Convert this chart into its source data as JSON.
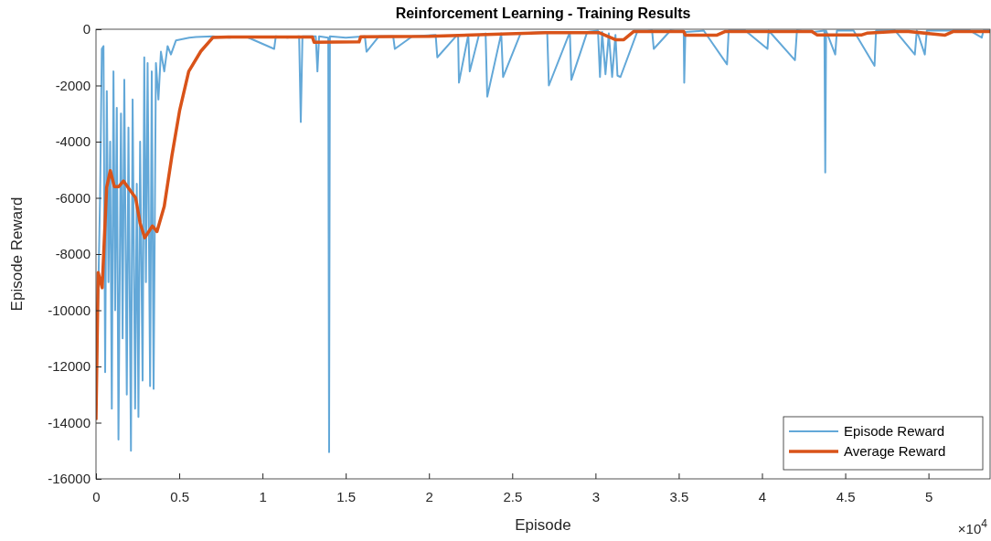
{
  "chart_data": {
    "type": "line",
    "title": "Reinforcement Learning - Training Results",
    "xlabel": "Episode",
    "ylabel": "Episode Reward",
    "annotations": [
      "×10$^{4}$"
    ],
    "xlim": [
      0,
      5.37
    ],
    "xticks": [
      0,
      0.5,
      1,
      1.5,
      2,
      2.5,
      3,
      3.5,
      4,
      4.5,
      5
    ],
    "ylim": [
      -16000,
      0
    ],
    "yticks": [
      -16000,
      -14000,
      -12000,
      -10000,
      -8000,
      -6000,
      -4000,
      -2000,
      0
    ],
    "grid": false,
    "legend": "bottom right",
    "series": [
      {
        "name": "Episode Reward",
        "color": "#63a8d8",
        "x": [
          0,
          0.01,
          0.025,
          0.035,
          0.045,
          0.055,
          0.065,
          0.075,
          0.085,
          0.095,
          0.105,
          0.115,
          0.125,
          0.135,
          0.15,
          0.16,
          0.17,
          0.185,
          0.195,
          0.21,
          0.22,
          0.235,
          0.245,
          0.255,
          0.265,
          0.28,
          0.29,
          0.3,
          0.31,
          0.325,
          0.335,
          0.346,
          0.36,
          0.375,
          0.39,
          0.41,
          0.43,
          0.45,
          0.48,
          0.52,
          0.56,
          0.6,
          0.7,
          0.8,
          0.9,
          1.07,
          1.08,
          1.15,
          1.22,
          1.23,
          1.24,
          1.32,
          1.33,
          1.34,
          1.395,
          1.4,
          1.405,
          1.5,
          1.615,
          1.625,
          1.7,
          1.785,
          1.795,
          1.9,
          2.04,
          2.05,
          2.17,
          2.175,
          2.18,
          2.236,
          2.245,
          2.3,
          2.34,
          2.35,
          2.434,
          2.445,
          2.55,
          2.71,
          2.72,
          2.846,
          2.855,
          2.95,
          3.015,
          3.027,
          3.04,
          3.06,
          3.08,
          3.1,
          3.12,
          3.132,
          3.15,
          3.25,
          3.34,
          3.35,
          3.45,
          3.53,
          3.533,
          3.54,
          3.65,
          3.79,
          3.8,
          3.9,
          4.033,
          4.04,
          4.198,
          4.21,
          4.31,
          4.375,
          4.38,
          4.385,
          4.44,
          4.45,
          4.55,
          4.676,
          4.685,
          4.8,
          4.918,
          4.93,
          4.978,
          4.99,
          5.1,
          5.25,
          5.32,
          5.33,
          5.37
        ],
        "values": [
          -13900,
          -10500,
          -5800,
          -700,
          -600,
          -12200,
          -2200,
          -9000,
          -4000,
          -13500,
          -1500,
          -10000,
          -2800,
          -14600,
          -3000,
          -11000,
          -1800,
          -13000,
          -3500,
          -15000,
          -2500,
          -13500,
          -5500,
          -13800,
          -4000,
          -12500,
          -1000,
          -9000,
          -1200,
          -12700,
          -1500,
          -12800,
          -1200,
          -2500,
          -800,
          -1500,
          -600,
          -900,
          -400,
          -350,
          -300,
          -280,
          -250,
          -300,
          -260,
          -700,
          -250,
          -300,
          -250,
          -3300,
          -250,
          -250,
          -1500,
          -250,
          -300,
          -15050,
          -250,
          -300,
          -250,
          -800,
          -250,
          -250,
          -700,
          -250,
          -200,
          -1000,
          -200,
          -250,
          -1900,
          -200,
          -1500,
          -200,
          -150,
          -2400,
          -150,
          -1700,
          -150,
          -100,
          -2000,
          -100,
          -1800,
          -100,
          -50,
          -1700,
          -100,
          -1600,
          -150,
          -1700,
          -200,
          -1650,
          -1700,
          -100,
          -50,
          -700,
          -50,
          -100,
          -1900,
          -100,
          -50,
          -1250,
          -50,
          -50,
          -700,
          -50,
          -1100,
          -50,
          -100,
          -50,
          -5100,
          -50,
          -900,
          -50,
          -50,
          -1300,
          -50,
          -50,
          -900,
          -50,
          -900,
          -50,
          -50,
          -50,
          -300,
          -50,
          -50
        ]
      },
      {
        "name": "Average Reward",
        "color": "#d95319",
        "x": [
          0,
          0.013,
          0.037,
          0.064,
          0.086,
          0.11,
          0.137,
          0.165,
          0.201,
          0.238,
          0.265,
          0.293,
          0.339,
          0.366,
          0.41,
          0.456,
          0.502,
          0.557,
          0.63,
          0.703,
          0.795,
          1,
          1.3,
          1.31,
          1.58,
          1.59,
          2,
          2.7,
          3.02,
          3.12,
          3.17,
          3.23,
          3.53,
          3.54,
          3.73,
          3.78,
          4.3,
          4.33,
          4.6,
          4.63,
          4.8,
          4.88,
          5.1,
          5.15,
          5.37
        ],
        "values": [
          -13900,
          -8660,
          -9200,
          -5630,
          -5030,
          -5600,
          -5600,
          -5400,
          -5700,
          -6000,
          -6900,
          -7420,
          -7000,
          -7200,
          -6300,
          -4500,
          -2900,
          -1500,
          -780,
          -290,
          -280,
          -280,
          -280,
          -460,
          -450,
          -270,
          -250,
          -120,
          -120,
          -370,
          -370,
          -80,
          -80,
          -210,
          -210,
          -80,
          -80,
          -200,
          -200,
          -140,
          -80,
          -80,
          -210,
          -80,
          -80
        ]
      }
    ]
  }
}
